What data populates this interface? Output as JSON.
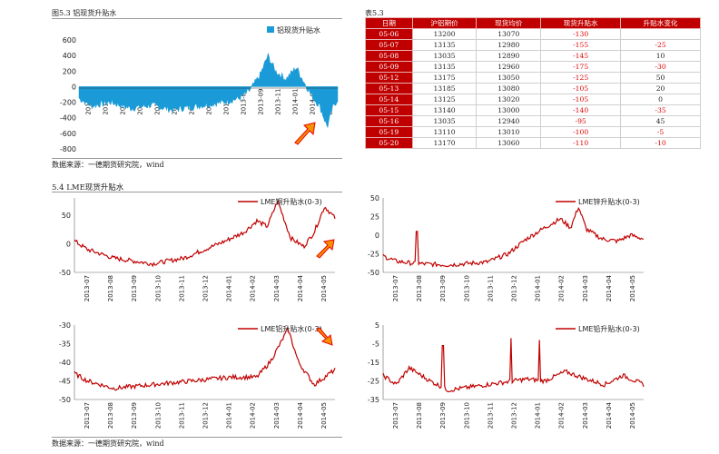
{
  "top_left": {
    "caption": "图5.3 铝现货升贴水",
    "source": "数据来源：一德期货研究院，wind",
    "chart": {
      "type": "area",
      "legend": "铝现货升贴水",
      "color": "#1a9bd7",
      "yticks": [
        "600",
        "400",
        "200",
        "0",
        "-200",
        "-400",
        "-600",
        "-800"
      ],
      "ylim": [
        -800,
        600
      ],
      "xticks": [
        "2012-01",
        "2012-03",
        "2012-05",
        "2012-07",
        "2012-09",
        "2012-11",
        "2013-01",
        "2013-03",
        "2013-05",
        "2013-07",
        "2013-09",
        "2013-11",
        "2014-01",
        "2014-03",
        "2014-05"
      ]
    }
  },
  "top_right": {
    "caption": "表5.3",
    "headers": [
      "日期",
      "沪铝期价",
      "现货均价",
      "现货升贴水",
      "升贴水变化"
    ],
    "rows": [
      [
        "05-06",
        "13200",
        "13070",
        "-130",
        ""
      ],
      [
        "05-07",
        "13135",
        "12980",
        "-155",
        "-25"
      ],
      [
        "05-08",
        "13035",
        "12890",
        "-145",
        "10"
      ],
      [
        "05-09",
        "13135",
        "12960",
        "-175",
        "-30"
      ],
      [
        "05-12",
        "13175",
        "13050",
        "-125",
        "50"
      ],
      [
        "05-13",
        "13185",
        "13080",
        "-105",
        "20"
      ],
      [
        "05-14",
        "13125",
        "13020",
        "-105",
        "0"
      ],
      [
        "05-15",
        "13140",
        "13000",
        "-140",
        "-35"
      ],
      [
        "05-16",
        "13035",
        "12940",
        "-95",
        "45"
      ],
      [
        "05-19",
        "13110",
        "13010",
        "-100",
        "-5"
      ],
      [
        "05-20",
        "13170",
        "13060",
        "-110",
        "-10"
      ]
    ]
  },
  "section_title": "5.4 LME现货升贴水",
  "bottom_source": "数据来源：一德期货研究院，wind",
  "lme_charts": [
    {
      "legend": "LME铜升贴水(0-3)",
      "yticks": [
        "50",
        "0",
        "-50"
      ],
      "ylim": [
        -50,
        80
      ],
      "color": "#c00000"
    },
    {
      "legend": "LME锌升贴水(0-3)",
      "yticks": [
        "50",
        "25",
        "0",
        "-25",
        "-50"
      ],
      "ylim": [
        -50,
        50
      ],
      "color": "#c00000"
    },
    {
      "legend": "LME铝升贴水(0-3)",
      "yticks": [
        "-30",
        "-35",
        "-40",
        "-45",
        "-50"
      ],
      "ylim": [
        -50,
        -30
      ],
      "color": "#c00000"
    },
    {
      "legend": "LME铅升贴水(0-3)",
      "yticks": [
        "5",
        "-5",
        "-15",
        "-25",
        "-35"
      ],
      "ylim": [
        -35,
        5
      ],
      "color": "#c00000"
    }
  ],
  "lme_xticks": [
    "2013-07",
    "2013-08",
    "2013-09",
    "2013-10",
    "2013-11",
    "2013-12",
    "2014-01",
    "2014-02",
    "2014-03",
    "2014-04",
    "2014-05"
  ]
}
